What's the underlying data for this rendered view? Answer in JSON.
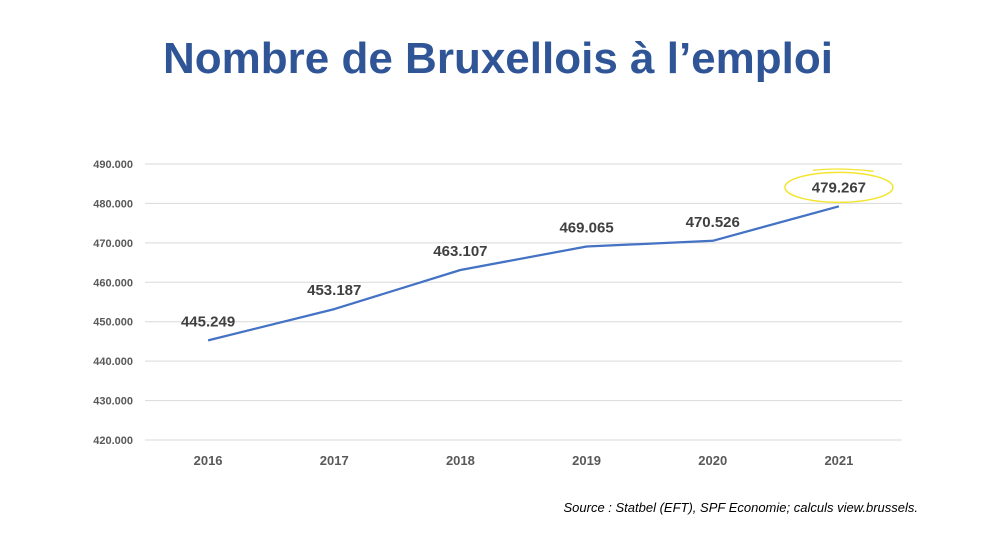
{
  "chart_data": {
    "type": "line",
    "title": "Nombre de Bruxellois à l’emploi",
    "categories": [
      "2016",
      "2017",
      "2018",
      "2019",
      "2020",
      "2021"
    ],
    "series": [
      {
        "name": "Nombre de Bruxellois à l’emploi",
        "values": [
          445249,
          453187,
          463107,
          469065,
          470526,
          479267
        ]
      }
    ],
    "data_labels": [
      "445.249",
      "453.187",
      "463.107",
      "469.065",
      "470.526",
      "479.267"
    ],
    "highlighted_label": "479.267",
    "ylim": [
      420000,
      490000
    ],
    "yticks": [
      420000,
      430000,
      440000,
      450000,
      460000,
      470000,
      480000,
      490000
    ],
    "ytick_labels": [
      "420.000",
      "430.000",
      "440.000",
      "450.000",
      "460.000",
      "470.000",
      "480.000",
      "490.000"
    ],
    "xlabel": "",
    "ylabel": "",
    "grid": true
  },
  "source": "Source : Statbel (EFT), SPF Economie; calculs view.brussels.",
  "colors": {
    "title": "#2F5597",
    "line": "#4472C4",
    "grid": "#D9D9D9",
    "highlight": "#F2E530"
  }
}
